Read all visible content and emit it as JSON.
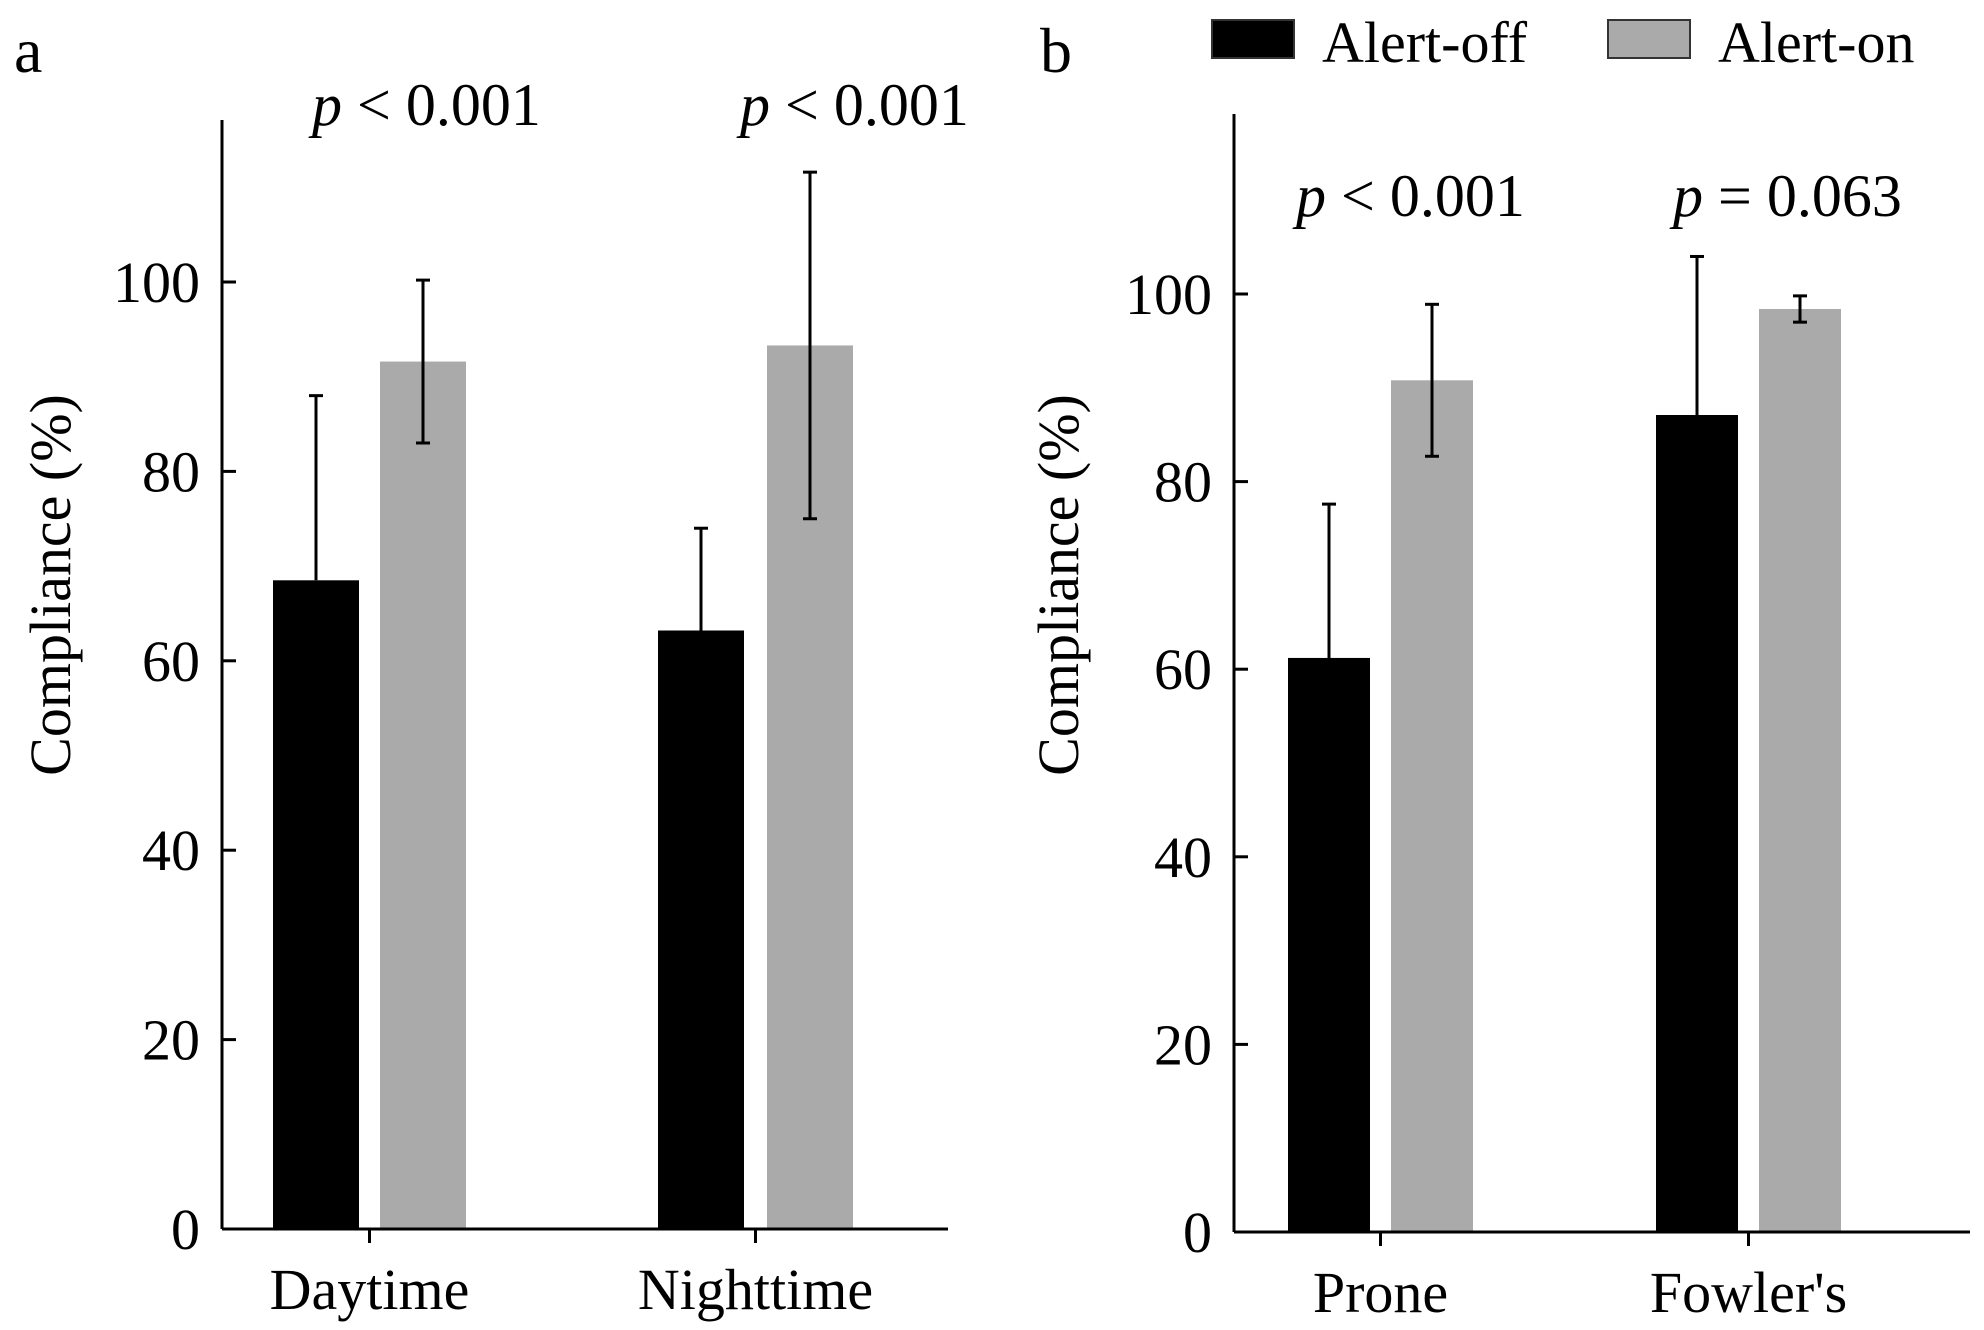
{
  "legend": {
    "entries": [
      {
        "label": "Alert-off",
        "color": "#000000"
      },
      {
        "label": "Alert-on",
        "color": "#aaaaaa"
      }
    ]
  },
  "chart_data": [
    {
      "type": "bar",
      "panel_label": "a",
      "categories": [
        "Daytime",
        "Nighttime"
      ],
      "series": [
        {
          "name": "Alert-off",
          "color": "#000000",
          "values": [
            68.5,
            63.2
          ],
          "errors": [
            19.5,
            10.8
          ]
        },
        {
          "name": "Alert-on",
          "color": "#aaaaaa",
          "values": [
            91.6,
            93.3
          ],
          "errors": [
            8.6,
            18.3
          ]
        }
      ],
      "annotations": [
        {
          "category": "Daytime",
          "prefix": "p",
          "text": " < 0.001"
        },
        {
          "category": "Nighttime",
          "prefix": "p",
          "text": " < 0.001"
        }
      ],
      "ylabel": "Compliance (%)",
      "ylim": [
        0,
        117
      ],
      "yticks": [
        0,
        20,
        40,
        60,
        80,
        100
      ],
      "grid": false
    },
    {
      "type": "bar",
      "panel_label": "b",
      "categories": [
        "Prone",
        "Fowler's"
      ],
      "series": [
        {
          "name": "Alert-off",
          "color": "#000000",
          "values": [
            61.2,
            87.1
          ],
          "errors": [
            16.4,
            16.9
          ]
        },
        {
          "name": "Alert-on",
          "color": "#aaaaaa",
          "values": [
            90.8,
            98.4
          ],
          "errors": [
            8.1,
            1.4
          ]
        }
      ],
      "annotations": [
        {
          "category": "Prone",
          "prefix": "p",
          "text": " < 0.001"
        },
        {
          "category": "Fowler's",
          "prefix": "p",
          "text": " = 0.063"
        }
      ],
      "ylabel": "Compliance (%)",
      "ylim": [
        0,
        119
      ],
      "yticks": [
        0,
        20,
        40,
        60,
        80,
        100
      ],
      "grid": false
    }
  ]
}
